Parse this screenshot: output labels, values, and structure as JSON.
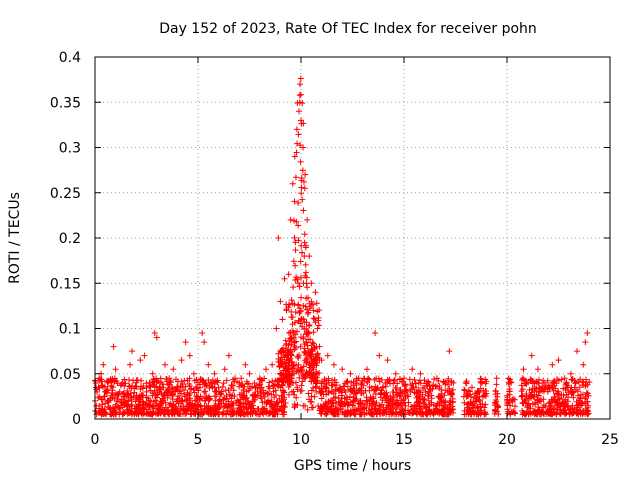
{
  "chart_data": {
    "type": "scatter",
    "title": "Day 152 of 2023, Rate Of TEC Index for receiver pohn",
    "xlabel": "GPS time / hours",
    "ylabel": "ROTI / TECUs",
    "xlim": [
      0,
      25
    ],
    "ylim": [
      0,
      0.4
    ],
    "x_ticks": [
      0,
      5,
      10,
      15,
      20,
      25
    ],
    "x_tick_labels": [
      "0",
      "5",
      "10",
      "15",
      "20",
      "25"
    ],
    "y_ticks": [
      0,
      0.05,
      0.1,
      0.15,
      0.2,
      0.25,
      0.3,
      0.35,
      0.4
    ],
    "y_tick_labels": [
      "0",
      "0.05",
      "0.1",
      "0.15",
      "0.2",
      "0.25",
      "0.3",
      "0.35",
      "0.4"
    ],
    "grid": true,
    "legend": "none",
    "marker": "plus",
    "color": "#ff0000",
    "data_gaps_hours": [
      [
        17.4,
        17.9
      ],
      [
        19.0,
        19.4
      ],
      [
        19.6,
        20.0
      ],
      [
        20.4,
        20.7
      ]
    ],
    "points": [
      [
        0.0,
        0.02
      ],
      [
        0.1,
        0.03
      ],
      [
        0.2,
        0.045
      ],
      [
        0.3,
        0.05
      ],
      [
        0.4,
        0.06
      ],
      [
        0.5,
        0.03
      ],
      [
        0.6,
        0.02
      ],
      [
        0.8,
        0.04
      ],
      [
        0.9,
        0.08
      ],
      [
        1.0,
        0.055
      ],
      [
        1.2,
        0.03
      ],
      [
        1.5,
        0.02
      ],
      [
        1.7,
        0.06
      ],
      [
        1.8,
        0.075
      ],
      [
        2.0,
        0.04
      ],
      [
        2.2,
        0.065
      ],
      [
        2.4,
        0.07
      ],
      [
        2.5,
        0.03
      ],
      [
        2.8,
        0.05
      ],
      [
        2.9,
        0.095
      ],
      [
        3.0,
        0.09
      ],
      [
        3.2,
        0.04
      ],
      [
        3.4,
        0.06
      ],
      [
        3.6,
        0.045
      ],
      [
        3.8,
        0.055
      ],
      [
        4.0,
        0.035
      ],
      [
        4.2,
        0.065
      ],
      [
        4.4,
        0.085
      ],
      [
        4.6,
        0.07
      ],
      [
        4.8,
        0.05
      ],
      [
        5.0,
        0.04
      ],
      [
        5.2,
        0.095
      ],
      [
        5.3,
        0.085
      ],
      [
        5.5,
        0.06
      ],
      [
        5.8,
        0.05
      ],
      [
        6.0,
        0.035
      ],
      [
        6.3,
        0.055
      ],
      [
        6.5,
        0.07
      ],
      [
        6.8,
        0.045
      ],
      [
        7.0,
        0.04
      ],
      [
        7.3,
        0.06
      ],
      [
        7.5,
        0.05
      ],
      [
        7.8,
        0.035
      ],
      [
        8.0,
        0.045
      ],
      [
        8.3,
        0.055
      ],
      [
        8.6,
        0.06
      ],
      [
        8.8,
        0.1
      ],
      [
        8.9,
        0.2
      ],
      [
        9.0,
        0.13
      ],
      [
        9.1,
        0.11
      ],
      [
        9.2,
        0.155
      ],
      [
        9.3,
        0.12
      ],
      [
        9.4,
        0.16
      ],
      [
        9.5,
        0.22
      ],
      [
        9.6,
        0.26
      ],
      [
        9.7,
        0.29
      ],
      [
        9.8,
        0.32
      ],
      [
        9.9,
        0.34
      ],
      [
        9.95,
        0.37
      ],
      [
        10.0,
        0.33
      ],
      [
        10.1,
        0.3
      ],
      [
        10.2,
        0.27
      ],
      [
        10.3,
        0.22
      ],
      [
        10.4,
        0.18
      ],
      [
        10.5,
        0.15
      ],
      [
        10.6,
        0.12
      ],
      [
        10.7,
        0.14
      ],
      [
        10.8,
        0.1
      ],
      [
        10.9,
        0.08
      ],
      [
        11.0,
        0.065
      ],
      [
        11.3,
        0.07
      ],
      [
        11.6,
        0.06
      ],
      [
        12.0,
        0.055
      ],
      [
        12.4,
        0.05
      ],
      [
        12.8,
        0.045
      ],
      [
        13.2,
        0.055
      ],
      [
        13.6,
        0.095
      ],
      [
        13.8,
        0.07
      ],
      [
        14.2,
        0.065
      ],
      [
        14.6,
        0.05
      ],
      [
        15.0,
        0.045
      ],
      [
        15.4,
        0.055
      ],
      [
        15.8,
        0.05
      ],
      [
        16.2,
        0.04
      ],
      [
        16.6,
        0.045
      ],
      [
        17.0,
        0.04
      ],
      [
        17.2,
        0.075
      ],
      [
        18.0,
        0.04
      ],
      [
        18.3,
        0.035
      ],
      [
        18.6,
        0.03
      ],
      [
        19.5,
        0.045
      ],
      [
        20.2,
        0.04
      ],
      [
        20.8,
        0.055
      ],
      [
        21.2,
        0.07
      ],
      [
        21.5,
        0.055
      ],
      [
        21.8,
        0.04
      ],
      [
        22.2,
        0.06
      ],
      [
        22.5,
        0.065
      ],
      [
        22.8,
        0.045
      ],
      [
        23.1,
        0.05
      ],
      [
        23.4,
        0.075
      ],
      [
        23.7,
        0.06
      ],
      [
        23.8,
        0.085
      ],
      [
        23.9,
        0.095
      ]
    ],
    "background_noise": {
      "x_range": [
        0,
        24
      ],
      "y_median": 0.02,
      "y_upper_typical": 0.04
    }
  }
}
